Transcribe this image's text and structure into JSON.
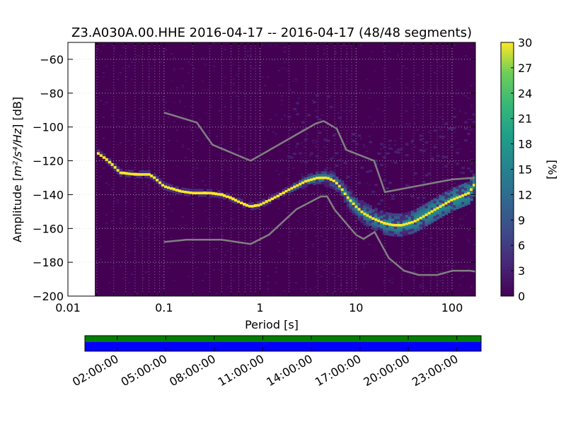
{
  "chart_data": {
    "type": "heatmap",
    "title": "Z3.A030A.00.HHE   2016-04-17 -- 2016-04-17  (48/48 segments)",
    "xlabel": "Period [s]",
    "ylabel_prefix": "Amplitude [",
    "ylabel_math": "m²/s⁴/Hz",
    "ylabel_suffix": "] [dB]",
    "x_scale": "log",
    "xlim": [
      0.01,
      175
    ],
    "ylim": [
      -200,
      -50
    ],
    "x_ticks": [
      0.01,
      0.1,
      1,
      10,
      100
    ],
    "x_tick_labels": [
      "0.01",
      "0.1",
      "1",
      "10",
      "100"
    ],
    "y_ticks": [
      -200,
      -180,
      -160,
      -140,
      -120,
      -100,
      -80,
      -60
    ],
    "y_tick_labels": [
      "−200",
      "−180",
      "−160",
      "−140",
      "−120",
      "−100",
      "−80",
      "−60"
    ],
    "grid": true,
    "data_start_period": 0.02,
    "colorbar": {
      "label": "[%]",
      "range": [
        0,
        30
      ],
      "ticks": [
        0,
        3,
        6,
        9,
        12,
        15,
        18,
        21,
        24,
        27,
        30
      ],
      "colormap": "viridis"
    },
    "mode_curve": {
      "name": "mode",
      "periods": [
        0.02,
        0.025,
        0.03,
        0.035,
        0.05,
        0.07,
        0.08,
        0.1,
        0.15,
        0.2,
        0.3,
        0.4,
        0.5,
        0.7,
        0.8,
        1.0,
        1.5,
        2.0,
        3.0,
        4.0,
        5.0,
        6.0,
        7.0,
        8.0,
        10.0,
        12.0,
        15.0,
        20.0,
        25.0,
        30.0,
        40.0,
        50.0,
        70.0,
        100.0,
        150.0,
        175.0
      ],
      "db": [
        -115,
        -119,
        -123,
        -127,
        -128,
        -128,
        -130,
        -135,
        -138,
        -139,
        -139,
        -140,
        -142,
        -146,
        -147,
        -146,
        -141,
        -137,
        -132,
        -130,
        -130,
        -132,
        -136,
        -141,
        -147,
        -151,
        -154,
        -157,
        -158,
        -158,
        -156,
        -153,
        -148,
        -143,
        -139,
        -133
      ]
    },
    "peterson_high_noise_model": {
      "periods": [
        0.1,
        0.22,
        0.32,
        0.8,
        3.8,
        4.6,
        6.3,
        7.9,
        15.4,
        20.0,
        100.0,
        175.0
      ],
      "db": [
        -91.5,
        -97.4,
        -110.5,
        -120.0,
        -98.0,
        -96.5,
        -101.0,
        -113.5,
        -120.0,
        -138.5,
        -131.0,
        -130.0
      ]
    },
    "peterson_low_noise_model": {
      "periods": [
        0.1,
        0.17,
        0.4,
        0.8,
        1.24,
        2.4,
        4.3,
        5.0,
        6.0,
        10.0,
        12.0,
        15.6,
        21.9,
        31.6,
        45.0,
        70.0,
        101.0,
        154.0,
        175.0
      ],
      "db": [
        -168,
        -166.7,
        -166.7,
        -169.2,
        -163.7,
        -148.6,
        -141.1,
        -141.1,
        -149.0,
        -163.8,
        -166.2,
        -162.1,
        -177.5,
        -185.0,
        -187.5,
        -187.5,
        -185.0,
        -185.0,
        -185.5
      ]
    },
    "coverage_bar": {
      "time_ticks": [
        "02:00:00",
        "05:00:00",
        "08:00:00",
        "11:00:00",
        "14:00:00",
        "17:00:00",
        "20:00:00",
        "23:00:00"
      ],
      "time_ticks_hours": [
        2,
        5,
        8,
        11,
        14,
        17,
        20,
        23
      ],
      "time_range_hours": [
        0,
        24.5
      ],
      "data_color": "#008000",
      "processed_color": "#0000ff"
    },
    "colors": {
      "background_zero": "#440154",
      "mode_line": "#fde725",
      "noise_model_line": "#808080",
      "grid_line": "#cccccc"
    }
  }
}
